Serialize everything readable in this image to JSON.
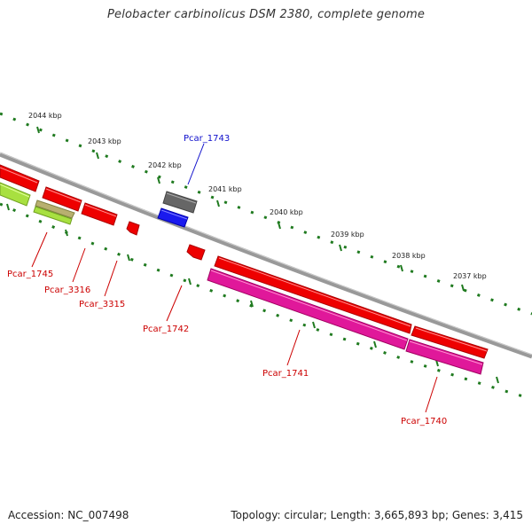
{
  "title": "Pelobacter carbinolicus DSM 2380, complete genome",
  "footer": {
    "accession": "Accession: NC_007498",
    "summary": "Topology: circular; Length: 3,665,893 bp; Genes: 3,415"
  },
  "ruler": {
    "ticks": [
      "2044 kbp",
      "2043 kbp",
      "2042 kbp",
      "2041 kbp",
      "2040 kbp",
      "2039 kbp",
      "2038 kbp",
      "2037 kbp"
    ]
  },
  "genes": [
    {
      "name": "Pcar_1745",
      "color": "#cc0000"
    },
    {
      "name": "Pcar_3316",
      "color": "#cc0000"
    },
    {
      "name": "Pcar_3315",
      "color": "#cc0000"
    },
    {
      "name": "Pcar_1742",
      "color": "#cc0000"
    },
    {
      "name": "Pcar_1743",
      "color": "#1010cc"
    },
    {
      "name": "Pcar_1741",
      "color": "#cc0000"
    },
    {
      "name": "Pcar_1740",
      "color": "#cc0000"
    }
  ],
  "colors": {
    "backbone": "#888888",
    "ruler": "#1f7a1f",
    "forward_gene": "#ee0000",
    "reverse_gene": "#e0189a",
    "pseudogene": "#666666",
    "rna_gene": "#1a1aee",
    "lime_gene": "#a8e040",
    "olive_gene": "#b8b070"
  }
}
